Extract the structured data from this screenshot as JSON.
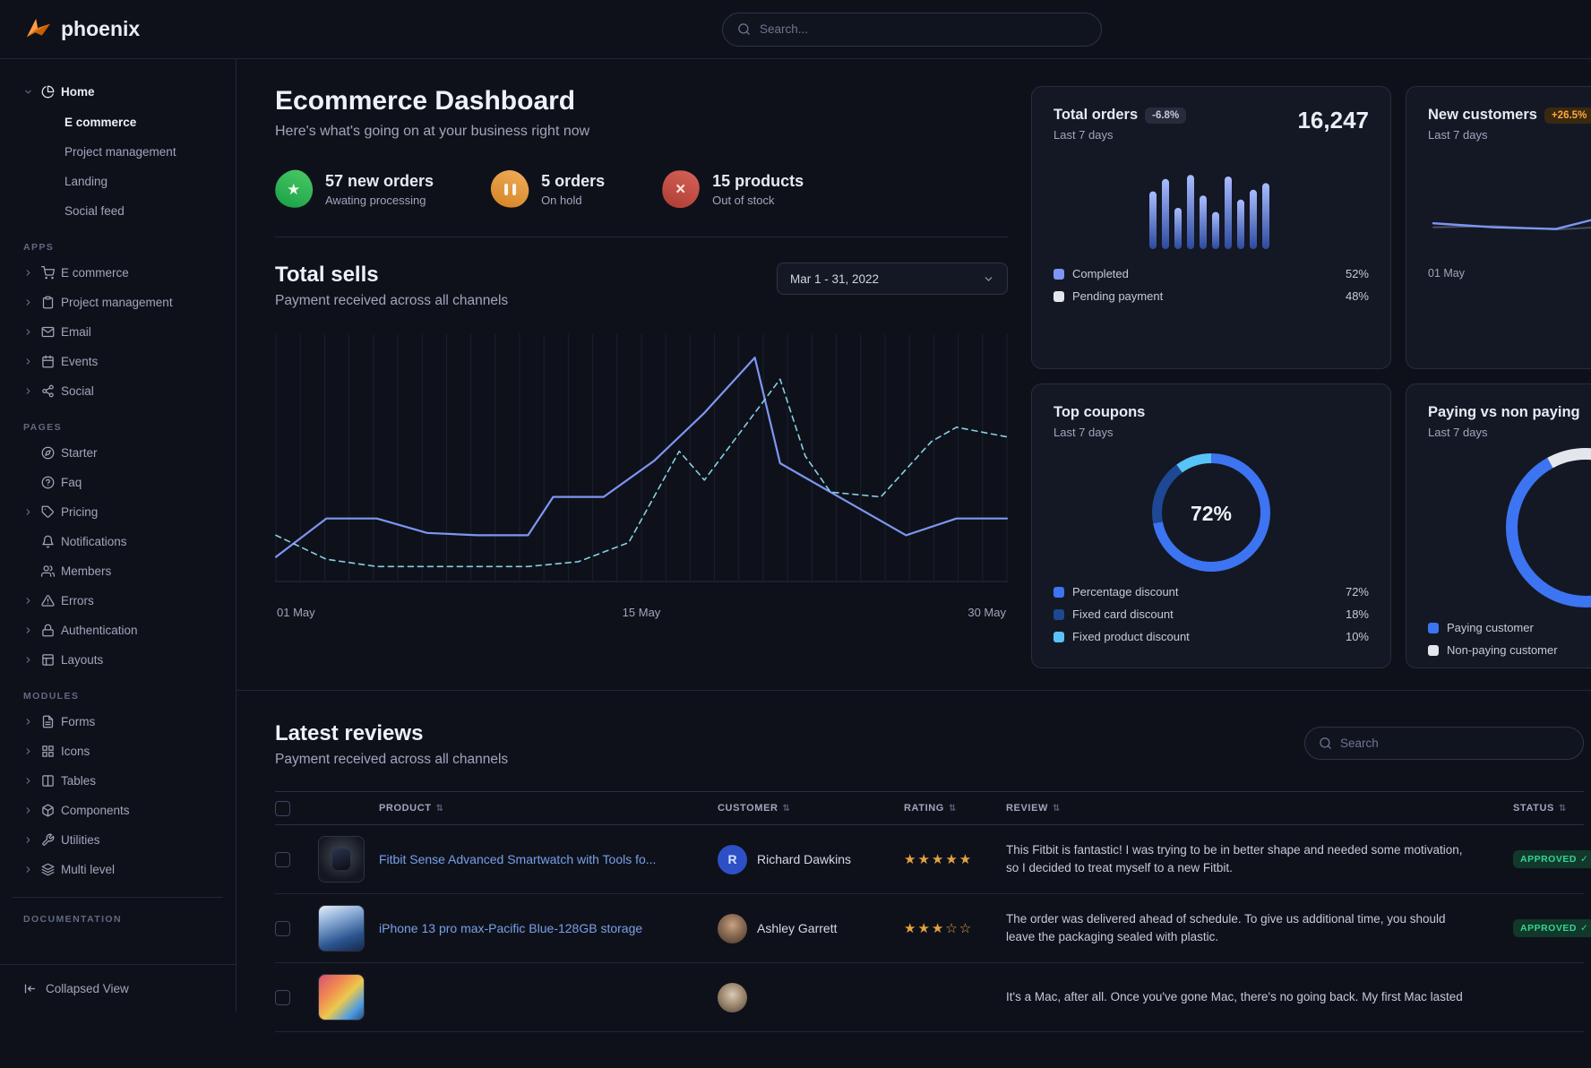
{
  "theme": {
    "background": "#0f111a",
    "card_background": "#141824",
    "border": "#20263a",
    "accent_blue": "#3d74f2",
    "link_blue": "#76a0e8",
    "success_green": "#35d492",
    "warning_orange": "#ffa83d",
    "star_gold": "#e5a33d"
  },
  "navbar": {
    "brand": "phoenix",
    "search_placeholder": "Search..."
  },
  "sidebar": {
    "home": {
      "label": "Home",
      "icon": "pie-chart",
      "children": [
        {
          "label": "E commerce",
          "active": true
        },
        {
          "label": "Project management",
          "active": false
        },
        {
          "label": "Landing",
          "active": false
        },
        {
          "label": "Social feed",
          "active": false
        }
      ]
    },
    "sections": [
      {
        "label": "APPS",
        "items": [
          {
            "label": "E commerce",
            "icon": "shopping-cart",
            "caret": true
          },
          {
            "label": "Project management",
            "icon": "clipboard",
            "caret": true
          },
          {
            "label": "Email",
            "icon": "mail",
            "caret": true
          },
          {
            "label": "Events",
            "icon": "calendar",
            "caret": true
          },
          {
            "label": "Social",
            "icon": "share",
            "caret": true
          }
        ]
      },
      {
        "label": "PAGES",
        "items": [
          {
            "label": "Starter",
            "icon": "compass",
            "caret": false
          },
          {
            "label": "Faq",
            "icon": "help-circle",
            "caret": false
          },
          {
            "label": "Pricing",
            "icon": "tag",
            "caret": true
          },
          {
            "label": "Notifications",
            "icon": "bell",
            "caret": false
          },
          {
            "label": "Members",
            "icon": "users",
            "caret": false
          },
          {
            "label": "Errors",
            "icon": "alert-triangle",
            "caret": true
          },
          {
            "label": "Authentication",
            "icon": "lock",
            "caret": true
          },
          {
            "label": "Layouts",
            "icon": "layout",
            "caret": true
          }
        ]
      },
      {
        "label": "MODULES",
        "items": [
          {
            "label": "Forms",
            "icon": "file-text",
            "caret": true
          },
          {
            "label": "Icons",
            "icon": "grid",
            "caret": true
          },
          {
            "label": "Tables",
            "icon": "columns",
            "caret": true
          },
          {
            "label": "Components",
            "icon": "package",
            "caret": true
          },
          {
            "label": "Utilities",
            "icon": "tool",
            "caret": true
          },
          {
            "label": "Multi level",
            "icon": "layers",
            "caret": true
          }
        ]
      },
      {
        "label": "DOCUMENTATION",
        "divider_before": true,
        "items": []
      }
    ],
    "footer_label": "Collapsed View"
  },
  "page": {
    "title": "Ecommerce Dashboard",
    "subtitle": "Here's what's going on at your business right now"
  },
  "stats": [
    {
      "icon": "star",
      "color": "green",
      "value": "57 new orders",
      "caption": "Awating processing"
    },
    {
      "icon": "pause",
      "color": "orange",
      "value": "5 orders",
      "caption": "On hold"
    },
    {
      "icon": "x",
      "color": "red",
      "value": "15 products",
      "caption": "Out of stock"
    }
  ],
  "total_sells": {
    "title": "Total sells",
    "subtitle": "Payment received across all channels",
    "date_range": "Mar 1 - 31, 2022",
    "x_labels": [
      "01 May",
      "15 May",
      "30 May"
    ]
  },
  "cards": {
    "total_orders": {
      "title": "Total orders",
      "badge": "-6.8%",
      "period": "Last 7 days",
      "value": "16,247",
      "legend": [
        {
          "label": "Completed",
          "value": "52%",
          "color": "#7b96f5"
        },
        {
          "label": "Pending payment",
          "value": "48%",
          "color": "#e3e6ed"
        }
      ]
    },
    "new_customers": {
      "title": "New customers",
      "badge": "+26.5%",
      "period": "Last 7 days",
      "x_label": "01 May"
    },
    "top_coupons": {
      "title": "Top coupons",
      "period": "Last 7 days",
      "center_value": "72%",
      "legend": [
        {
          "label": "Percentage discount",
          "value": "72%",
          "color": "#3d74f2"
        },
        {
          "label": "Fixed card discount",
          "value": "18%",
          "color": "#1e4894"
        },
        {
          "label": "Fixed product discount",
          "value": "10%",
          "color": "#58c3f9"
        }
      ]
    },
    "paying_vs_non_paying": {
      "title": "Paying vs non paying",
      "period": "Last 7 days",
      "legend": [
        {
          "label": "Paying customer",
          "color": "#3d74f2"
        },
        {
          "label": "Non-paying customer",
          "color": "#e3e6ed"
        }
      ]
    }
  },
  "reviews": {
    "title": "Latest reviews",
    "subtitle": "Payment received across all channels",
    "search_placeholder": "Search",
    "columns": [
      "PRODUCT",
      "CUSTOMER",
      "RATING",
      "REVIEW",
      "STATUS"
    ],
    "rows": [
      {
        "product": "Fitbit Sense Advanced Smartwatch with Tools fo...",
        "thumb": "watch",
        "customer": "Richard Dawkins",
        "avatar": {
          "type": "initial",
          "text": "R"
        },
        "rating": 5,
        "review": "This Fitbit is fantastic! I was trying to be in better shape and needed some motivation, so I decided to treat myself to a new Fitbit.",
        "status": "APPROVED"
      },
      {
        "product": "iPhone 13 pro max-Pacific Blue-128GB storage",
        "thumb": "iphone",
        "customer": "Ashley Garrett",
        "avatar": {
          "type": "photo-1"
        },
        "rating": 3,
        "review": "The order was delivered ahead of schedule. To give us additional time, you should leave the packaging sealed with plastic.",
        "status": "APPROVED"
      },
      {
        "product": "",
        "thumb": "macbook",
        "customer": "",
        "avatar": {
          "type": "photo-2"
        },
        "rating": null,
        "review": "It's a Mac, after all. Once you've gone Mac, there's no going back. My first Mac lasted",
        "status": ""
      }
    ]
  },
  "chart_data": [
    {
      "name": "total_sells",
      "type": "line",
      "title": "Total sells",
      "x_axis": {
        "labels": [
          "01 May",
          "15 May",
          "30 May"
        ],
        "range": [
          1,
          30
        ]
      },
      "ylim": [
        0,
        100
      ],
      "grid": "vertical",
      "series": [
        {
          "name": "current",
          "style": "solid",
          "color": "#7e96f2",
          "points": [
            [
              1,
              8
            ],
            [
              3,
              24
            ],
            [
              5,
              24
            ],
            [
              7,
              18
            ],
            [
              9,
              17
            ],
            [
              11,
              17
            ],
            [
              12,
              33
            ],
            [
              14,
              33
            ],
            [
              16,
              48
            ],
            [
              18,
              68
            ],
            [
              20,
              91
            ],
            [
              21,
              47
            ],
            [
              23,
              35
            ],
            [
              26,
              17
            ],
            [
              28,
              24
            ],
            [
              30,
              24
            ]
          ]
        },
        {
          "name": "previous",
          "style": "dashed",
          "color": "#85d0e4",
          "points": [
            [
              1,
              17
            ],
            [
              3,
              7
            ],
            [
              5,
              4
            ],
            [
              8,
              4
            ],
            [
              11,
              4
            ],
            [
              13,
              6
            ],
            [
              15,
              14
            ],
            [
              17,
              52
            ],
            [
              18,
              40
            ],
            [
              21,
              82
            ],
            [
              22,
              50
            ],
            [
              23,
              35
            ],
            [
              25,
              33
            ],
            [
              27,
              56
            ],
            [
              28,
              62
            ],
            [
              30,
              58
            ]
          ]
        }
      ]
    },
    {
      "name": "total_orders_bars",
      "type": "bar",
      "ylim": [
        0,
        100
      ],
      "values": [
        70,
        85,
        50,
        90,
        65,
        45,
        88,
        60,
        72,
        80
      ],
      "color_top": "#a9bcff",
      "color_bottom": "#2c4a9e"
    },
    {
      "name": "new_customers_line",
      "type": "line",
      "ylim": [
        0,
        100
      ],
      "series": [
        {
          "name": "secondary",
          "style": "solid",
          "color": "#4b5368",
          "points": [
            [
              0,
              38
            ],
            [
              1,
              40
            ],
            [
              2,
              34
            ],
            [
              3,
              40
            ],
            [
              4,
              55
            ],
            [
              5,
              50
            ]
          ]
        },
        {
          "name": "primary",
          "style": "solid",
          "color": "#7e96f2",
          "points": [
            [
              0,
              45
            ],
            [
              1,
              38
            ],
            [
              2,
              35
            ],
            [
              3,
              62
            ],
            [
              4,
              45
            ],
            [
              5,
              70
            ]
          ]
        }
      ]
    },
    {
      "name": "top_coupons_donut",
      "type": "pie",
      "values": [
        72,
        18,
        10
      ],
      "labels": [
        "Percentage discount",
        "Fixed card discount",
        "Fixed product discount"
      ],
      "colors": [
        "#3d74f2",
        "#1e4894",
        "#58c3f9"
      ],
      "center_label": "72%"
    },
    {
      "name": "paying_donut",
      "type": "pie",
      "values": [
        67,
        33
      ],
      "labels": [
        "Paying customer",
        "Non-paying customer"
      ],
      "colors": [
        "#3d74f2",
        "#e3e6ed"
      ]
    }
  ]
}
